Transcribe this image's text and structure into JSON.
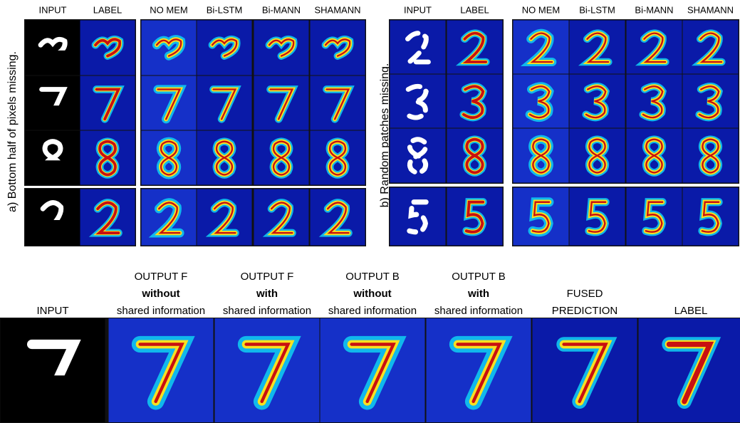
{
  "panel_a": {
    "label": "a) Bottom half of pixels missing.",
    "columns": [
      "INPUT",
      "LABEL",
      "NO MEM",
      "Bi-LSTM",
      "Bi-MANN",
      "SHAMANN"
    ]
  },
  "panel_b": {
    "label": "b) Random patches missing.",
    "columns": [
      "INPUT",
      "LABEL",
      "NO MEM",
      "Bi-LSTM",
      "Bi-MANN",
      "SHAMANN"
    ]
  },
  "bottom": {
    "columns": [
      {
        "lines": [
          "INPUT"
        ]
      },
      {
        "lines": [
          "OUTPUT F",
          "without",
          "shared information"
        ]
      },
      {
        "lines": [
          "OUTPUT F",
          "with",
          "shared information"
        ]
      },
      {
        "lines": [
          "OUTPUT B",
          "without",
          "shared information"
        ]
      },
      {
        "lines": [
          "OUTPUT B",
          "with",
          "shared information"
        ]
      },
      {
        "lines": [
          "FUSED",
          "PREDICTION"
        ]
      },
      {
        "lines": [
          "LABEL"
        ]
      }
    ]
  }
}
